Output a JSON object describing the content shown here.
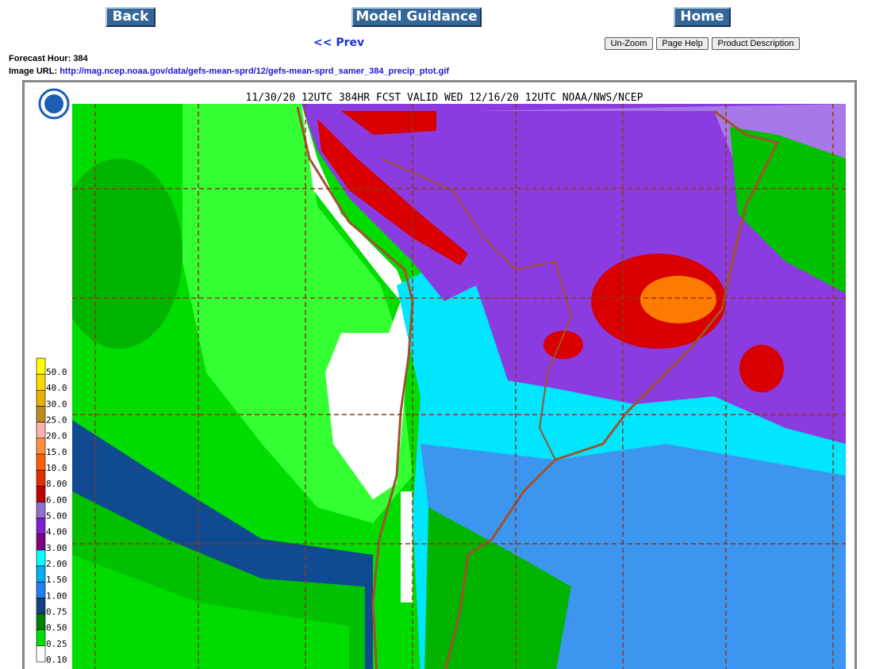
{
  "nav": {
    "back": "Back",
    "model_guidance": "Model Guidance",
    "home": "Home",
    "prev": "<< Prev"
  },
  "tools": [
    "Un-Zoom",
    "Page Help",
    "Product Description"
  ],
  "info": {
    "forecast_hour_label": "Forecast Hour:",
    "forecast_hour": "384",
    "image_url_label": "Image URL:",
    "image_url": "http://mag.ncep.noaa.gov/data/gefs-mean-sprd/12/gefs-mean-sprd_samer_384_precip_ptot.gif"
  },
  "map": {
    "title": "11/30/20 12UTC 384HR FCST VALID WED 12/16/20 12UTC NOAA/NWS/NCEP",
    "legend": [
      "50.0",
      "40.0",
      "30.0",
      "25.0",
      "20.0",
      "15.0",
      "10.0",
      "8.00",
      "6.00",
      "5.00",
      "4.00",
      "3.00",
      "2.00",
      "1.50",
      "1.00",
      "0.75",
      "0.50",
      "0.25",
      "0.10"
    ]
  }
}
